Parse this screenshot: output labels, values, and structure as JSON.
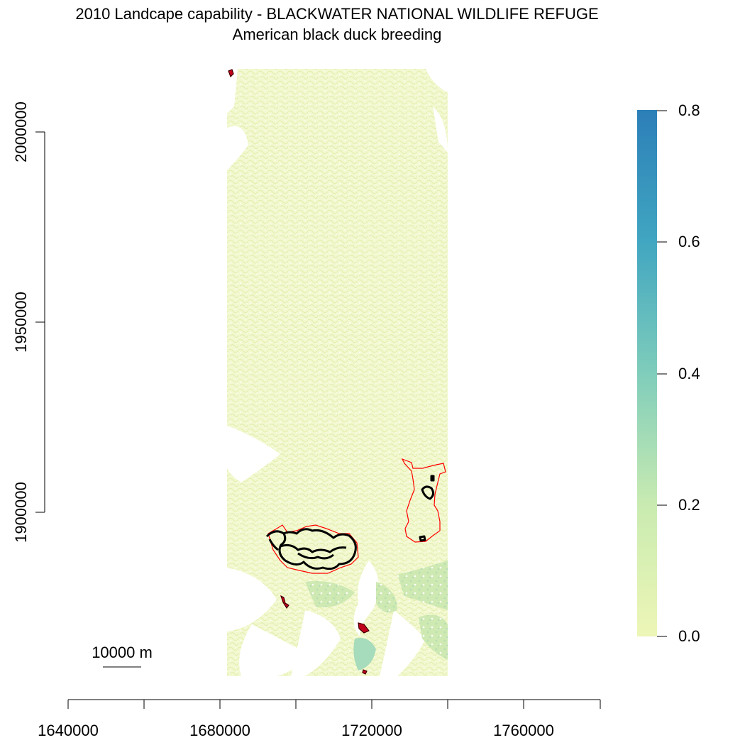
{
  "title": "2010 Landcape capability - BLACKWATER NATIONAL WILDLIFE REFUGE",
  "subtitle": "American black duck breeding",
  "x_axis": {
    "ticks": [
      1640000,
      1660000,
      1680000,
      1700000,
      1720000,
      1740000,
      1760000,
      1780000
    ],
    "tick_labels": [
      "1640000",
      "1680000",
      "1720000",
      "1760000"
    ]
  },
  "y_axis": {
    "ticks": [
      1900000,
      1950000,
      2000000
    ],
    "tick_labels": [
      "1900000",
      "1950000",
      "2000000"
    ]
  },
  "legend": {
    "min": 0.0,
    "max": 0.8,
    "labels": [
      "0.0",
      "0.2",
      "0.4",
      "0.6",
      "0.8"
    ],
    "colors": [
      "#EDF6B6",
      "#C9EBB1",
      "#7FCDBB",
      "#41A6C1",
      "#2C7FB8"
    ]
  },
  "scale_bar": {
    "label": "10000 m"
  },
  "colors": {
    "refuge_outline": "#ff0000",
    "core_outline": "#000000",
    "raster_low": "#EDF6B6",
    "raster_high": "#2C7FB8"
  }
}
